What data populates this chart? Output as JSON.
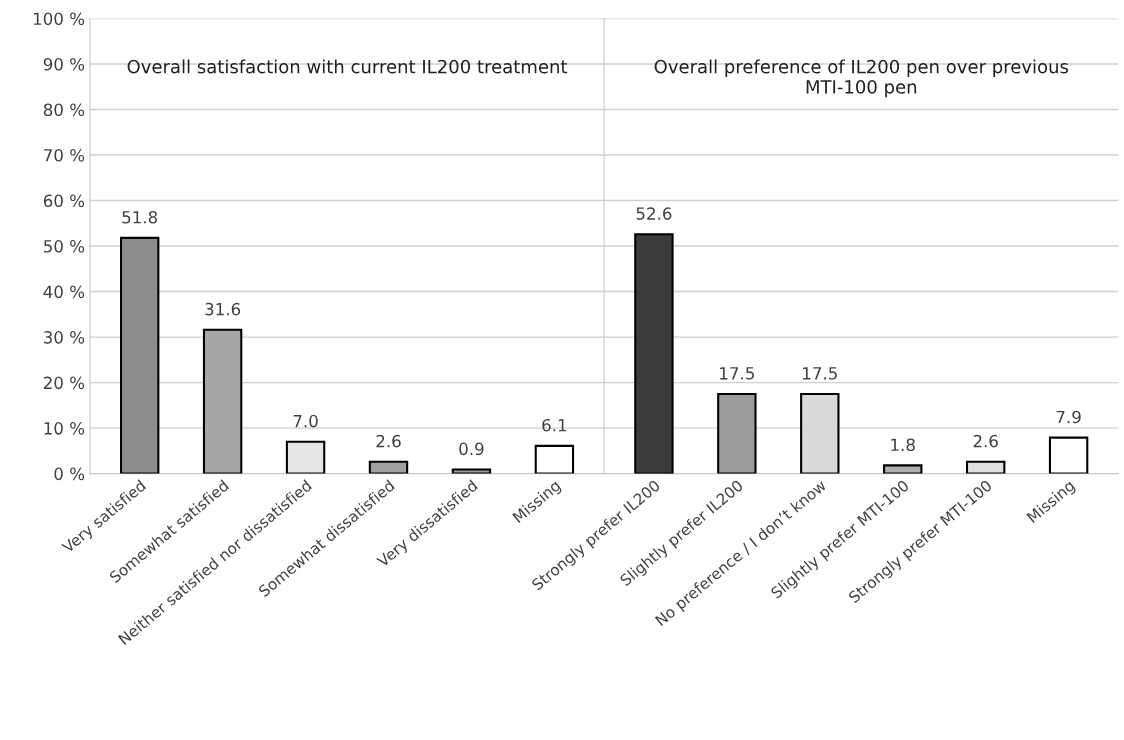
{
  "chart_data": [
    {
      "type": "bar",
      "title": "Overall satisfaction with current IL200 treatment",
      "categories": [
        "Very satisfied",
        "Somewhat satisfied",
        "Neither satisfied nor dissatisfied",
        "Somewhat dissatisfied",
        "Very dissatisfied",
        "Missing"
      ],
      "values": [
        51.8,
        31.6,
        7.0,
        2.6,
        0.9,
        6.1
      ],
      "colors": [
        "#8c8c8c",
        "#a6a6a6",
        "#e6e6e6",
        "#a0a0a0",
        "#9a9a9a",
        "#ffffff"
      ],
      "value_labels": [
        "51.8",
        "31.6",
        "7.0",
        "2.6",
        "0.9",
        "6.1"
      ],
      "ylim": [
        0,
        100
      ],
      "yticks": [
        {
          "value": 0,
          "label": "0 %"
        },
        {
          "value": 10,
          "label": "10 %"
        },
        {
          "value": 20,
          "label": "20 %"
        },
        {
          "value": 30,
          "label": "30 %"
        },
        {
          "value": 40,
          "label": "40 %"
        },
        {
          "value": 50,
          "label": "50 %"
        },
        {
          "value": 60,
          "label": "60 %"
        },
        {
          "value": 70,
          "label": "70 %"
        },
        {
          "value": 80,
          "label": "80 %"
        },
        {
          "value": 90,
          "label": "90 %"
        },
        {
          "value": 100,
          "label": "100 %"
        }
      ],
      "grid": "y"
    },
    {
      "type": "bar",
      "title": "Overall preference of IL200 pen over previous MTI-100 pen",
      "categories": [
        "Strongly prefer IL200",
        "Slightly prefer IL200",
        "No preference / I don’t know",
        "Slightly prefer MTI-100",
        "Strongly prefer MTI-100",
        "Missing"
      ],
      "values": [
        52.6,
        17.5,
        17.5,
        1.8,
        2.6,
        7.9
      ],
      "colors": [
        "#3c3c3c",
        "#9c9c9c",
        "#d9d9d9",
        "#b0b0b0",
        "#e0e0e0",
        "#ffffff"
      ],
      "value_labels": [
        "52.6",
        "17.5",
        "17.5",
        "1.8",
        "2.6",
        "7.9"
      ],
      "ylim": [
        0,
        100
      ],
      "yticks": [
        0,
        10,
        20,
        30,
        40,
        50,
        60,
        70,
        80,
        90,
        100
      ],
      "tick_labels": "x",
      "grid": "y"
    }
  ]
}
